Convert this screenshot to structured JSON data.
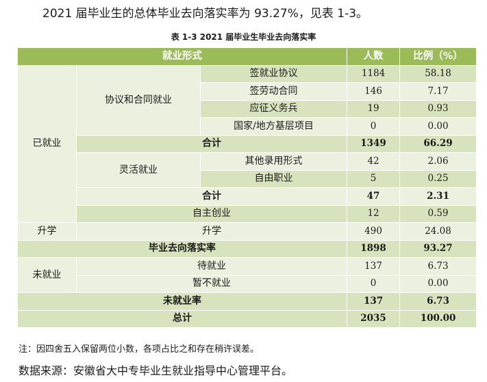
{
  "intro": "2021 届毕业生的总体毕业去向落实率为 93.27%，见表 1-3。",
  "caption": "表 1-3   2021 届毕业生毕业去向落实率",
  "header": {
    "form": "就业形式",
    "count": "人数",
    "ratio": "比例（%）"
  },
  "groups": {
    "employed": "已就业",
    "agreement": "协议和合同就业",
    "flexible": "灵活就业",
    "further": "升学",
    "unemployed": "未就业"
  },
  "rows": [
    {
      "label": "签就业协议",
      "count": "1184",
      "ratio": "58.18"
    },
    {
      "label": "签劳动合同",
      "count": "146",
      "ratio": "7.17"
    },
    {
      "label": "应征义务兵",
      "count": "19",
      "ratio": "0.93"
    },
    {
      "label": "国家/地方基层项目",
      "count": "0",
      "ratio": "0.00"
    },
    {
      "label": "合计",
      "count": "1349",
      "ratio": "66.29"
    },
    {
      "label": "其他录用形式",
      "count": "42",
      "ratio": "2.06"
    },
    {
      "label": "自由职业",
      "count": "5",
      "ratio": "0.25"
    },
    {
      "label": "合计",
      "count": "47",
      "ratio": "2.31"
    },
    {
      "label": "自主创业",
      "count": "12",
      "ratio": "0.59"
    },
    {
      "label": "升学",
      "count": "490",
      "ratio": "24.08"
    },
    {
      "label": "毕业去向落实率",
      "count": "1898",
      "ratio": "93.27"
    },
    {
      "label": "待就业",
      "count": "137",
      "ratio": "6.73"
    },
    {
      "label": "暂不就业",
      "count": "0",
      "ratio": "0.00"
    },
    {
      "label": "未就业率",
      "count": "137",
      "ratio": "6.73"
    },
    {
      "label": "总计",
      "count": "2035",
      "ratio": "100.00"
    }
  ],
  "note": "注：因四舍五入保留两位小数，各项占比之和存在稍许误差。",
  "source": "数据来源：安徽省大中专毕业生就业指导中心管理平台。"
}
